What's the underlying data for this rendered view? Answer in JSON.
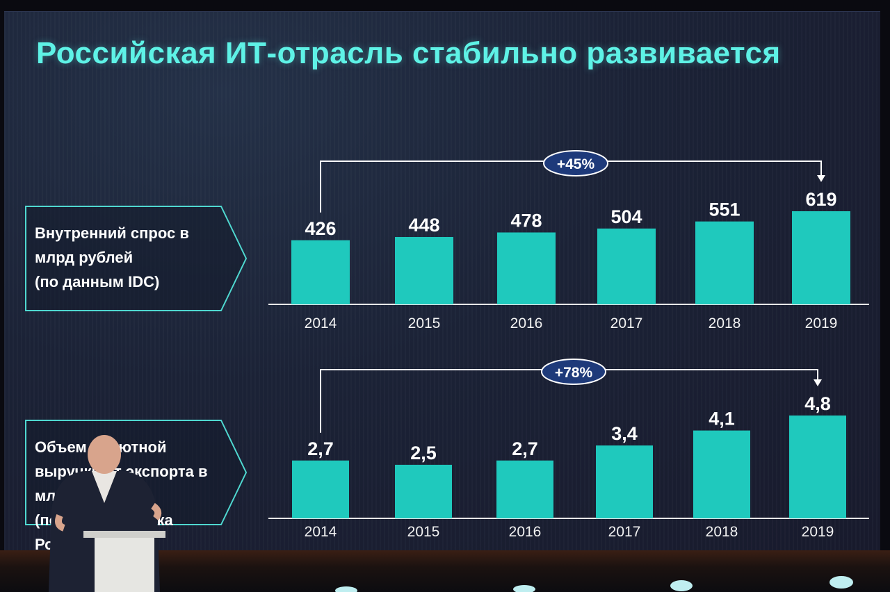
{
  "title": "Российская ИТ-отрасль стабильно развивается",
  "colors": {
    "title": "#5ef2e6",
    "bar": "#1fc9bd",
    "box_border": "#4fd8d0",
    "badge_fill": "#1e3a7a",
    "badge_stroke": "#ffffff"
  },
  "panels": [
    {
      "label": "Внутренний спрос в\nмлрд рублей\n(по данным IDC)"
    },
    {
      "label": "Объем валютной\nвыручки от экспорта в\nмлрд\n(по данным Банка России)"
    }
  ],
  "chart_data": [
    {
      "type": "bar",
      "categories": [
        "2014",
        "2015",
        "2016",
        "2017",
        "2018",
        "2019"
      ],
      "values": [
        426,
        448,
        478,
        504,
        551,
        619
      ],
      "value_labels": [
        "426",
        "448",
        "478",
        "504",
        "551",
        "619"
      ],
      "annotation": "+45%",
      "annotation_from": "2014",
      "annotation_to": "2019"
    },
    {
      "type": "bar",
      "categories": [
        "2014",
        "2015",
        "2016",
        "2017",
        "2018",
        "2019"
      ],
      "values": [
        2.7,
        2.5,
        2.7,
        3.4,
        4.1,
        4.8
      ],
      "value_labels": [
        "2,7",
        "2,5",
        "2,7",
        "3,4",
        "4,1",
        "4,8"
      ],
      "annotation": "+78%",
      "annotation_from": "2014",
      "annotation_to": "2019"
    }
  ]
}
